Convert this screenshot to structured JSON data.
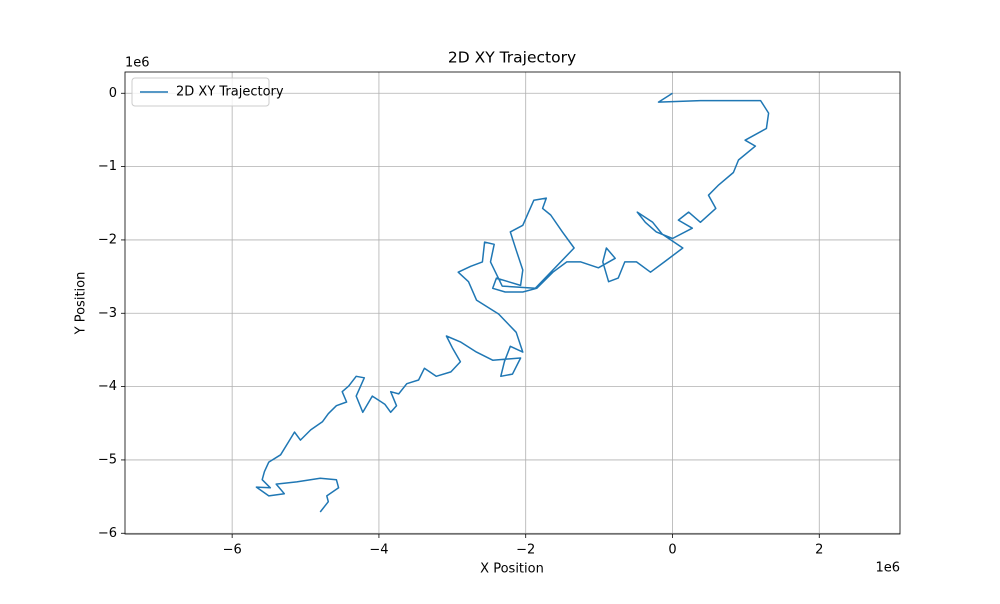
{
  "chart_data": {
    "type": "line",
    "title": "2D XY Trajectory",
    "x_label": "X Position",
    "y_label": "Y Position",
    "x_offset_label": "1e6",
    "y_offset_label": "1e6",
    "xlim": [
      -7.46,
      3.1
    ],
    "ylim": [
      -6.01,
      0.29
    ],
    "xticks": [
      {
        "value": -6,
        "label": "−6"
      },
      {
        "value": -4,
        "label": "−4"
      },
      {
        "value": -2,
        "label": "−2"
      },
      0,
      2
    ],
    "yticks": [
      0,
      {
        "value": -1,
        "label": "−1"
      },
      {
        "value": -2,
        "label": "−2"
      },
      {
        "value": -3,
        "label": "−3"
      },
      {
        "value": -4,
        "label": "−4"
      },
      {
        "value": -5,
        "label": "−5"
      },
      {
        "value": -6,
        "label": "−6"
      }
    ],
    "grid": true,
    "legend": "upper left",
    "x": [
      0,
      -0.19,
      0.38,
      1.2,
      1.31,
      1.28,
      0.99,
      1.13,
      0.9,
      0.83,
      0.63,
      0.49,
      0.59,
      0.38,
      0.22,
      0.08,
      0.27,
      0,
      -0.22,
      -0.37,
      -0.48,
      -0.27,
      -0.14,
      0.14,
      -0.11,
      -0.3,
      -0.49,
      -0.65,
      -0.74,
      -0.87,
      -0.95,
      -0.9,
      -0.78,
      -1.01,
      -1.25,
      -1.44,
      -1.63,
      -1.85,
      -2.04,
      -2.28,
      -2.45,
      -2.4,
      -2.07,
      -2.04,
      -2.13,
      -2.21,
      -2.04,
      -1.96,
      -1.89,
      -1.72,
      -1.77,
      -1.66,
      -1.5,
      -1.34,
      -1.87,
      -2.32,
      -2.48,
      -2.43,
      -2.56,
      -2.59,
      -2.75,
      -2.92,
      -2.78,
      -2.67,
      -2.37,
      -2.13,
      -2.04,
      -2.21,
      -2.29,
      -2.34,
      -2.18,
      -2.07,
      -2.45,
      -2.67,
      -2.89,
      -3.08,
      -3.0,
      -2.89,
      -3.02,
      -3.22,
      -3.38,
      -3.46,
      -3.62,
      -3.73,
      -3.84,
      -3.76,
      -3.84,
      -3.92,
      -4.09,
      -4.22,
      -4.31,
      -4.2,
      -4.31,
      -4.41,
      -4.5,
      -4.44,
      -4.58,
      -4.69,
      -4.77,
      -4.93,
      -5.07,
      -5.15,
      -5.23,
      -5.34,
      -5.5,
      -5.56,
      -5.59,
      -5.48,
      -5.67,
      -5.5,
      -5.29,
      -5.4,
      -5.12,
      -4.8,
      -4.58,
      -4.55,
      -4.71,
      -4.69,
      -4.8
    ],
    "series": [
      {
        "name": "2D XY Trajectory",
        "color": "#1f77b4",
        "values": [
          0,
          -0.12,
          -0.1,
          -0.1,
          -0.27,
          -0.48,
          -0.64,
          -0.72,
          -0.91,
          -1.08,
          -1.25,
          -1.39,
          -1.57,
          -1.76,
          -1.62,
          -1.73,
          -1.84,
          -1.98,
          -1.89,
          -1.76,
          -1.62,
          -1.76,
          -1.92,
          -2.11,
          -2.3,
          -2.44,
          -2.3,
          -2.3,
          -2.52,
          -2.57,
          -2.3,
          -2.11,
          -2.25,
          -2.38,
          -2.3,
          -2.3,
          -2.44,
          -2.66,
          -2.71,
          -2.71,
          -2.66,
          -2.52,
          -2.62,
          -2.41,
          -2.14,
          -1.89,
          -1.8,
          -1.62,
          -1.46,
          -1.43,
          -1.57,
          -1.66,
          -1.89,
          -2.11,
          -2.66,
          -2.63,
          -2.3,
          -2.06,
          -2.03,
          -2.3,
          -2.36,
          -2.44,
          -2.57,
          -2.82,
          -3.01,
          -3.26,
          -3.53,
          -3.45,
          -3.66,
          -3.86,
          -3.83,
          -3.61,
          -3.64,
          -3.53,
          -3.39,
          -3.31,
          -3.47,
          -3.66,
          -3.8,
          -3.86,
          -3.75,
          -3.91,
          -3.96,
          -4.1,
          -4.07,
          -4.26,
          -4.35,
          -4.24,
          -4.13,
          -4.35,
          -4.13,
          -3.88,
          -3.86,
          -3.99,
          -4.07,
          -4.21,
          -4.26,
          -4.37,
          -4.48,
          -4.59,
          -4.73,
          -4.62,
          -4.75,
          -4.93,
          -5.03,
          -5.16,
          -5.27,
          -5.38,
          -5.37,
          -5.49,
          -5.46,
          -5.33,
          -5.3,
          -5.25,
          -5.27,
          -5.38,
          -5.49,
          -5.57,
          -5.71
        ]
      }
    ]
  }
}
